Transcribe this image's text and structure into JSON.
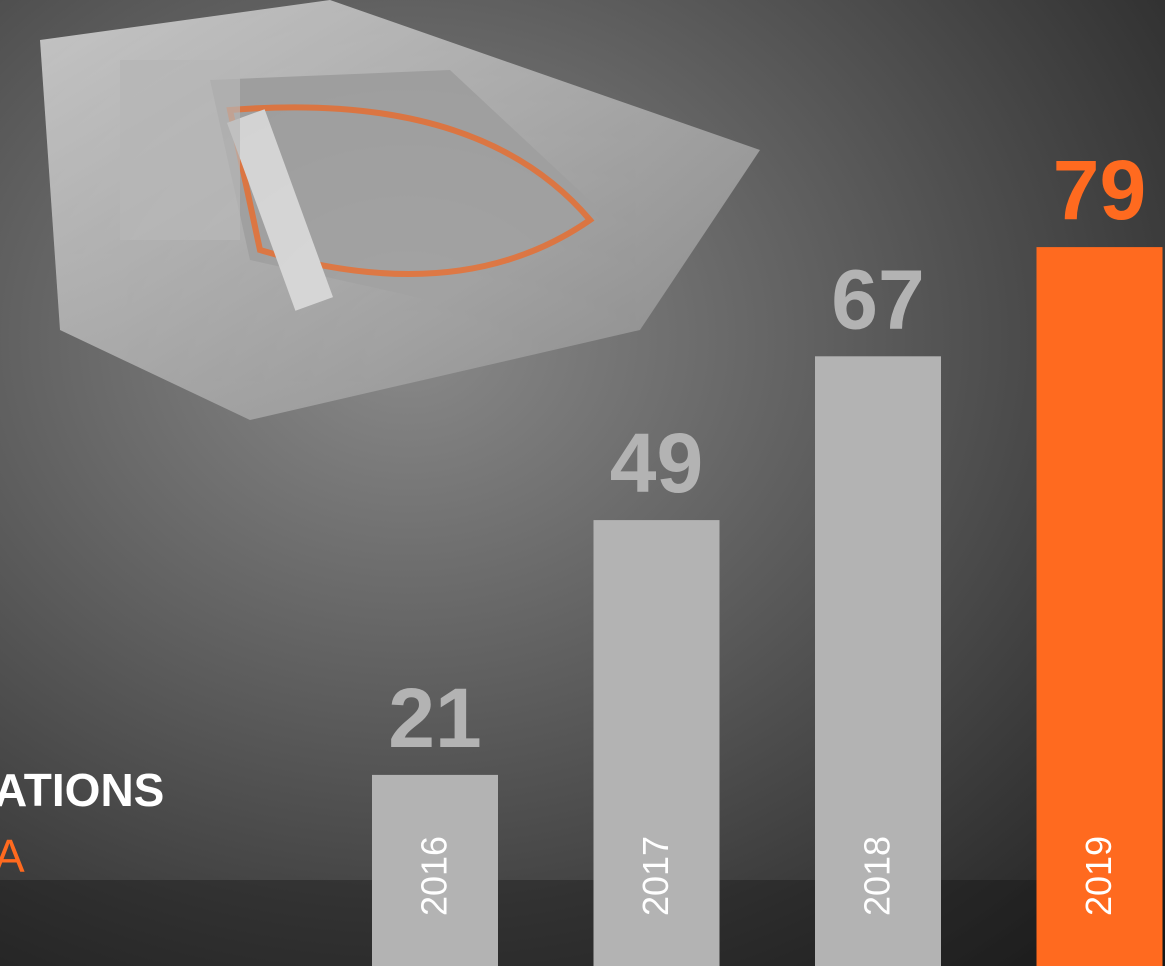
{
  "chart_data": {
    "type": "bar",
    "categories": [
      "2016",
      "2017",
      "2018",
      "2019"
    ],
    "values": [
      21,
      49,
      67,
      79
    ],
    "colors": [
      "#b3b3b3",
      "#b3b3b3",
      "#b3b3b3",
      "#ff6a1f"
    ],
    "annotations": [
      "ATIONS",
      "A"
    ]
  }
}
